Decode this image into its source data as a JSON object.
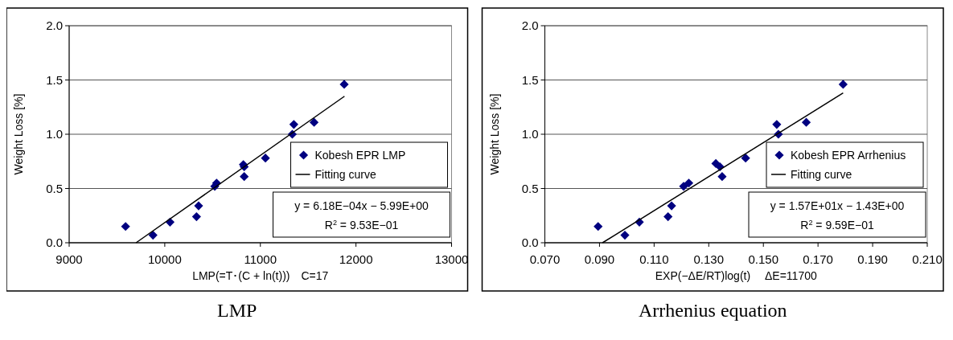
{
  "chart_data": [
    {
      "type": "scatter",
      "title": "LMP",
      "xlabel": "LMP(=T･(C + ln(t)))　C=17",
      "ylabel": "Weight Loss [%]",
      "xlim": [
        9000,
        13000
      ],
      "xticks": [
        9000,
        10000,
        11000,
        12000,
        13000
      ],
      "ylim": [
        0,
        2
      ],
      "yticks": [
        {
          "value": 0,
          "label": "0.0"
        },
        {
          "value": 0.5,
          "label": "0.5"
        },
        {
          "value": 1,
          "label": "1.0"
        },
        {
          "value": 1.5,
          "label": "1.5"
        },
        {
          "value": 2,
          "label": "2.0"
        }
      ],
      "grid": "y",
      "legend": "right",
      "marker": "diamond",
      "annotations": [
        "y = 6.18E−04x − 5.99E+00",
        "R$^{2}$ = 9.53E−01"
      ],
      "series": [
        {
          "name": "Kobesh EPR LMP",
          "color": "#000080",
          "x": [
            9590,
            9877,
            10055,
            10332,
            10354,
            10523,
            10542,
            10822,
            10831,
            10831,
            11053,
            11334,
            11350,
            11562,
            11877
          ],
          "values": [
            0.15,
            0.07,
            0.19,
            0.24,
            0.34,
            0.52,
            0.55,
            0.72,
            0.7,
            0.61,
            0.78,
            1.0,
            1.09,
            1.11,
            1.46
          ]
        },
        {
          "name": "Fitting curve",
          "type": "line",
          "marker": "none",
          "color": "#000000",
          "x": [
            9700,
            11880
          ],
          "values": [
            0.0,
            1.35
          ]
        }
      ]
    },
    {
      "type": "scatter",
      "title": "Arrhenius equation",
      "xlabel": "EXP(−ΔE/RT)log(t)　 ΔE=11700",
      "ylabel": "Weight Loss [%]",
      "xlim": [
        0.07,
        0.21
      ],
      "xticks": [
        {
          "value": 0.07,
          "label": "0.070"
        },
        {
          "value": 0.09,
          "label": "0.090"
        },
        {
          "value": 0.11,
          "label": "0.110"
        },
        {
          "value": 0.13,
          "label": "0.130"
        },
        {
          "value": 0.15,
          "label": "0.150"
        },
        {
          "value": 0.17,
          "label": "0.170"
        },
        {
          "value": 0.19,
          "label": "0.190"
        },
        {
          "value": 0.21,
          "label": "0.210"
        }
      ],
      "ylim": [
        0,
        2
      ],
      "yticks": [
        {
          "value": 0,
          "label": "0.0"
        },
        {
          "value": 0.5,
          "label": "0.5"
        },
        {
          "value": 1,
          "label": "1.0"
        },
        {
          "value": 1.5,
          "label": "1.5"
        },
        {
          "value": 2,
          "label": "2.0"
        }
      ],
      "grid": "y",
      "legend": "right",
      "marker": "diamond",
      "annotations": [
        "y = 1.57E+01x − 1.43E+00",
        "R$^{2}$ = 9.59E−01"
      ],
      "series": [
        {
          "name": "Kobesh EPR Arrhenius",
          "color": "#000080",
          "x": [
            0.0895,
            0.0993,
            0.1046,
            0.1151,
            0.1164,
            0.1208,
            0.1227,
            0.1326,
            0.1341,
            0.1349,
            0.1435,
            0.1549,
            0.1555,
            0.1657,
            0.1792
          ],
          "values": [
            0.15,
            0.07,
            0.19,
            0.24,
            0.34,
            0.52,
            0.55,
            0.73,
            0.7,
            0.61,
            0.78,
            1.09,
            1.0,
            1.11,
            1.46
          ]
        },
        {
          "name": "Fitting curve",
          "type": "line",
          "marker": "none",
          "color": "#000000",
          "x": [
            0.0911,
            0.1792
          ],
          "values": [
            0.0,
            1.38
          ]
        }
      ]
    }
  ]
}
